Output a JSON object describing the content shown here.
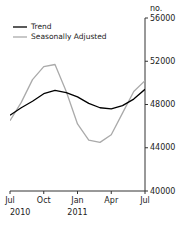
{
  "chart_data": {
    "type": "line",
    "ylabel": "no.",
    "x": [
      0,
      1,
      2,
      3,
      4,
      5,
      6,
      7,
      8,
      9,
      10,
      11,
      12
    ],
    "xlim": [
      0,
      12
    ],
    "xticks": [
      {
        "value": 0,
        "label": "Jul"
      },
      {
        "value": 3,
        "label": "Oct"
      },
      {
        "value": 6,
        "label": "Jan"
      },
      {
        "value": 9,
        "label": "Apr"
      },
      {
        "value": 12,
        "label": "Jul"
      }
    ],
    "ylim": [
      40000,
      56000
    ],
    "yticks": [
      40000,
      44000,
      48000,
      52000,
      56000
    ],
    "series": [
      {
        "name": "Trend",
        "color": "#000000",
        "values": [
          47000,
          47700,
          48300,
          49000,
          49300,
          49100,
          48700,
          48100,
          47700,
          47600,
          47900,
          48500,
          49400
        ]
      },
      {
        "name": "Seasonally Adjusted",
        "color": "#aaaaaa",
        "values": [
          46500,
          48200,
          50300,
          51500,
          51700,
          49200,
          46200,
          44700,
          44500,
          45200,
          47200,
          49200,
          50200
        ]
      }
    ],
    "annotations": [
      {
        "text": "2010",
        "x": 0
      },
      {
        "text": "2011",
        "x": 6
      }
    ],
    "legend": "top-left",
    "grid": false
  }
}
